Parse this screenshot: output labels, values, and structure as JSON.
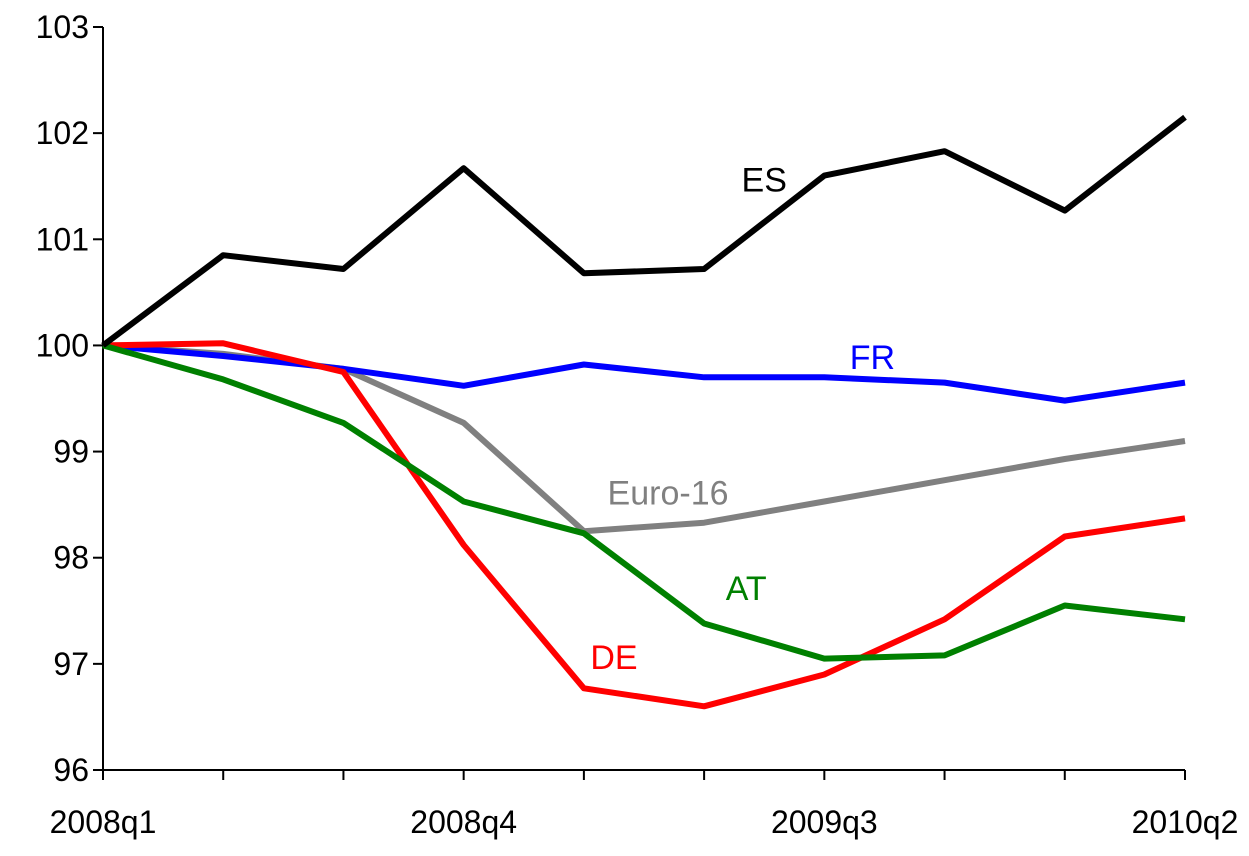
{
  "chart_data": {
    "type": "line",
    "x": [
      "2008q1",
      "2008q2",
      "2008q3",
      "2008q4",
      "2009q1",
      "2009q2",
      "2009q3",
      "2009q4",
      "2010q1",
      "2010q2"
    ],
    "xticklabels": [
      "2008q1",
      "2008q4",
      "2009q3",
      "2010q2"
    ],
    "ylim": [
      96,
      103
    ],
    "yticks": [
      "96",
      "97",
      "98",
      "99",
      "100",
      "101",
      "102",
      "103"
    ],
    "grid": false,
    "legend": "none",
    "series": [
      {
        "name": "ES",
        "color": "#000000",
        "values": [
          100.0,
          100.85,
          100.72,
          101.67,
          100.68,
          100.72,
          101.6,
          101.83,
          101.27,
          102.15
        ]
      },
      {
        "name": "FR",
        "color": "#0000ff",
        "values": [
          100.0,
          99.9,
          99.78,
          99.62,
          99.82,
          99.7,
          99.7,
          99.65,
          99.48,
          99.65
        ]
      },
      {
        "name": "Euro-16",
        "color": "#808080",
        "values": [
          100.0,
          99.92,
          99.78,
          99.27,
          98.25,
          98.33,
          98.53,
          98.73,
          98.93,
          99.1
        ]
      },
      {
        "name": "AT",
        "color": "#008000",
        "values": [
          100.0,
          99.68,
          99.27,
          98.53,
          98.23,
          97.38,
          97.05,
          97.08,
          97.55,
          97.42
        ]
      },
      {
        "name": "DE",
        "color": "#ff0000",
        "values": [
          100.0,
          100.02,
          99.75,
          98.12,
          96.77,
          96.6,
          96.9,
          97.42,
          98.2,
          98.37
        ]
      }
    ]
  }
}
